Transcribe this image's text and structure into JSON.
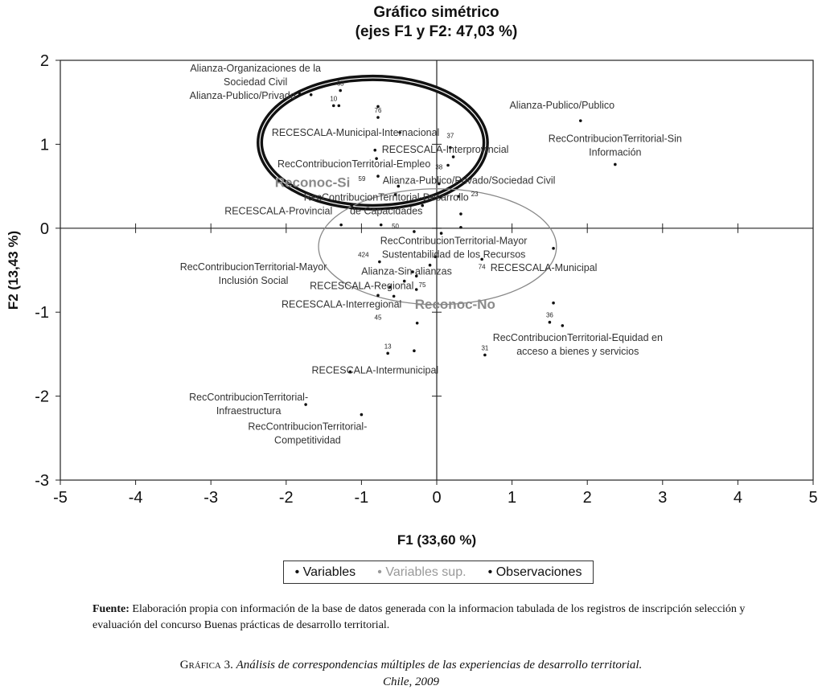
{
  "chart_data": {
    "type": "scatter",
    "title": "Gráfico simétrico",
    "subtitle": "(ejes F1 y F2: 47,03 %)",
    "xlabel": "F1 (33,60 %)",
    "ylabel": "F2 (13,43 %)",
    "xlim": [
      -5,
      5
    ],
    "ylim": [
      -3,
      2
    ],
    "xticks": [
      "-5",
      "-4",
      "-3",
      "-2",
      "-1",
      "0",
      "1",
      "2",
      "3",
      "4",
      "5"
    ],
    "yticks": [
      "-3",
      "-2",
      "-1",
      "0",
      "1",
      "2"
    ],
    "grid": false,
    "legend_placement": "bottom",
    "legend": [
      {
        "marker": "•",
        "label": "Variables",
        "color": "#111111"
      },
      {
        "marker": "•",
        "label": "Variables sup.",
        "color": "#999999"
      },
      {
        "marker": "•",
        "label": "Observaciones",
        "color": "#111111"
      }
    ],
    "variables": [
      {
        "x": -1.82,
        "y": 1.6,
        "label": [
          "Alianza-Organizaciones de la",
          "Sociedad Civil"
        ]
      },
      {
        "x": -1.67,
        "y": 1.59,
        "label": [
          "Alianza-Publico/Privado"
        ]
      },
      {
        "x": -0.49,
        "y": 1.14,
        "label": [
          "RECESCALA-Municipal-Internacional"
        ]
      },
      {
        "x": 0.22,
        "y": 0.85,
        "label": [
          "RECESCALA-Interprovincial"
        ]
      },
      {
        "x": -0.8,
        "y": 0.83,
        "label": [
          "RecContribucionTerritorial-Empleo"
        ]
      },
      {
        "x": 0.15,
        "y": 0.75,
        "label": [
          "Alianza-Publico/Privado/Sociedad Civil"
        ]
      },
      {
        "x": -0.51,
        "y": 0.5,
        "label": [
          "RecContribucionTerritorial-Desarrollo",
          "de Capacidades"
        ]
      },
      {
        "x": -1.13,
        "y": 0.27,
        "label": [
          "RECESCALA-Provincial"
        ]
      },
      {
        "x": 1.91,
        "y": 1.28,
        "label": [
          "Alianza-Publico/Publico"
        ]
      },
      {
        "x": 2.37,
        "y": 0.76,
        "label": [
          "RecContribucionTerritorial-Sin",
          "Información"
        ]
      },
      {
        "x": -0.02,
        "y": -0.34,
        "label": [
          "RecContribucionTerritorial-Mayor",
          "Sustentabilidad de los Recursos"
        ]
      },
      {
        "x": 1.55,
        "y": -0.24,
        "label": [
          "RECESCALA-Municipal"
        ]
      },
      {
        "x": -0.32,
        "y": -0.52,
        "label": [
          "RecContribucionTerritorial-Mayor",
          "Inclusión Social"
        ]
      },
      {
        "x": -0.09,
        "y": -0.44,
        "label": [
          "Alianza-Sin alianzas"
        ]
      },
      {
        "x": -0.43,
        "y": -0.63,
        "label": [
          "RECESCALA-Regional"
        ]
      },
      {
        "x": -0.57,
        "y": -0.81,
        "label": [
          "RECESCALA-Interregional"
        ]
      },
      {
        "x": 1.67,
        "y": -1.16,
        "label": [
          "RecContribucionTerritorial-Equidad en",
          "acceso a bienes y servicios"
        ]
      },
      {
        "x": -1.15,
        "y": -1.71,
        "label": [
          "RECESCALA-Intermunicipal"
        ]
      },
      {
        "x": -1.74,
        "y": -2.1,
        "label": [
          "RecContribucionTerritorial-",
          "Infraestructura"
        ]
      },
      {
        "x": -1.0,
        "y": -2.22,
        "label": [
          "RecContribucionTerritorial-",
          "Competitividad"
        ]
      }
    ],
    "supplementary": [
      {
        "x": -1.65,
        "y": 0.55,
        "label": "Reconoc-Si"
      },
      {
        "x": 0.03,
        "y": -0.9,
        "label": "Reconoc-No"
      }
    ],
    "observations": [
      {
        "x": -1.28,
        "y": 1.64,
        "label": "63"
      },
      {
        "x": -1.37,
        "y": 1.46,
        "label": "10"
      },
      {
        "x": -1.3,
        "y": 1.46,
        "label": ""
      },
      {
        "x": -0.78,
        "y": 1.45,
        "label": ""
      },
      {
        "x": -0.78,
        "y": 1.32,
        "label": "76"
      },
      {
        "x": 0.18,
        "y": 0.96,
        "label": "37"
      },
      {
        "x": -0.82,
        "y": 0.93,
        "label": ""
      },
      {
        "x": -0.78,
        "y": 0.62,
        "label": "59"
      },
      {
        "x": -0.55,
        "y": 0.4,
        "label": "50"
      },
      {
        "x": 0.03,
        "y": 0.53,
        "label": "38"
      },
      {
        "x": 0.29,
        "y": 0.38,
        "label": "23"
      },
      {
        "x": 0.05,
        "y": 0.37,
        "label": ""
      },
      {
        "x": -0.19,
        "y": 0.27,
        "label": ""
      },
      {
        "x": 0.32,
        "y": 0.17,
        "label": ""
      },
      {
        "x": -1.27,
        "y": 0.04,
        "label": ""
      },
      {
        "x": -0.74,
        "y": 0.04,
        "label": ""
      },
      {
        "x": -0.3,
        "y": -0.04,
        "label": ""
      },
      {
        "x": 0.06,
        "y": -0.06,
        "label": ""
      },
      {
        "x": 0.32,
        "y": 0.01,
        "label": ""
      },
      {
        "x": -0.76,
        "y": -0.4,
        "label": "424"
      },
      {
        "x": -0.27,
        "y": -0.57,
        "label": ""
      },
      {
        "x": -0.27,
        "y": -0.73,
        "label": ""
      },
      {
        "x": -0.62,
        "y": -0.7,
        "label": "75"
      },
      {
        "x": -0.78,
        "y": -0.8,
        "label": "45"
      },
      {
        "x": -0.26,
        "y": -1.13,
        "label": ""
      },
      {
        "x": -0.65,
        "y": -1.49,
        "label": "13"
      },
      {
        "x": -0.3,
        "y": -1.46,
        "label": ""
      },
      {
        "x": 0.64,
        "y": -1.51,
        "label": "31"
      },
      {
        "x": 1.55,
        "y": -0.89,
        "label": ""
      },
      {
        "x": 1.5,
        "y": -1.12,
        "label": "36"
      },
      {
        "x": 0.6,
        "y": -0.37,
        "label": "74"
      }
    ],
    "annotations": [
      {
        "shape": "ellipse",
        "cx": -0.85,
        "cy": 1.02,
        "rx": 1.5,
        "ry": 0.77,
        "color": "#111111",
        "style": "thick double"
      },
      {
        "shape": "ellipse",
        "cx": 0.01,
        "cy": -0.22,
        "rx": 1.58,
        "ry": 0.69,
        "color": "#888888",
        "style": "thin"
      }
    ]
  },
  "footer": {
    "source_label": "Fuente:",
    "source_text": "Elaboración propia con información de la base de datos generada con la informacion tabulada de los registros de inscripción  selección y evaluación del concurso Buenas prácticas de desarrollo territorial.",
    "caption_label": "Gráfica 3.",
    "caption_title": "Análisis de correspondencias múltiples de las experiencias de desarrollo territorial.",
    "caption_place": "Chile, 2009"
  }
}
